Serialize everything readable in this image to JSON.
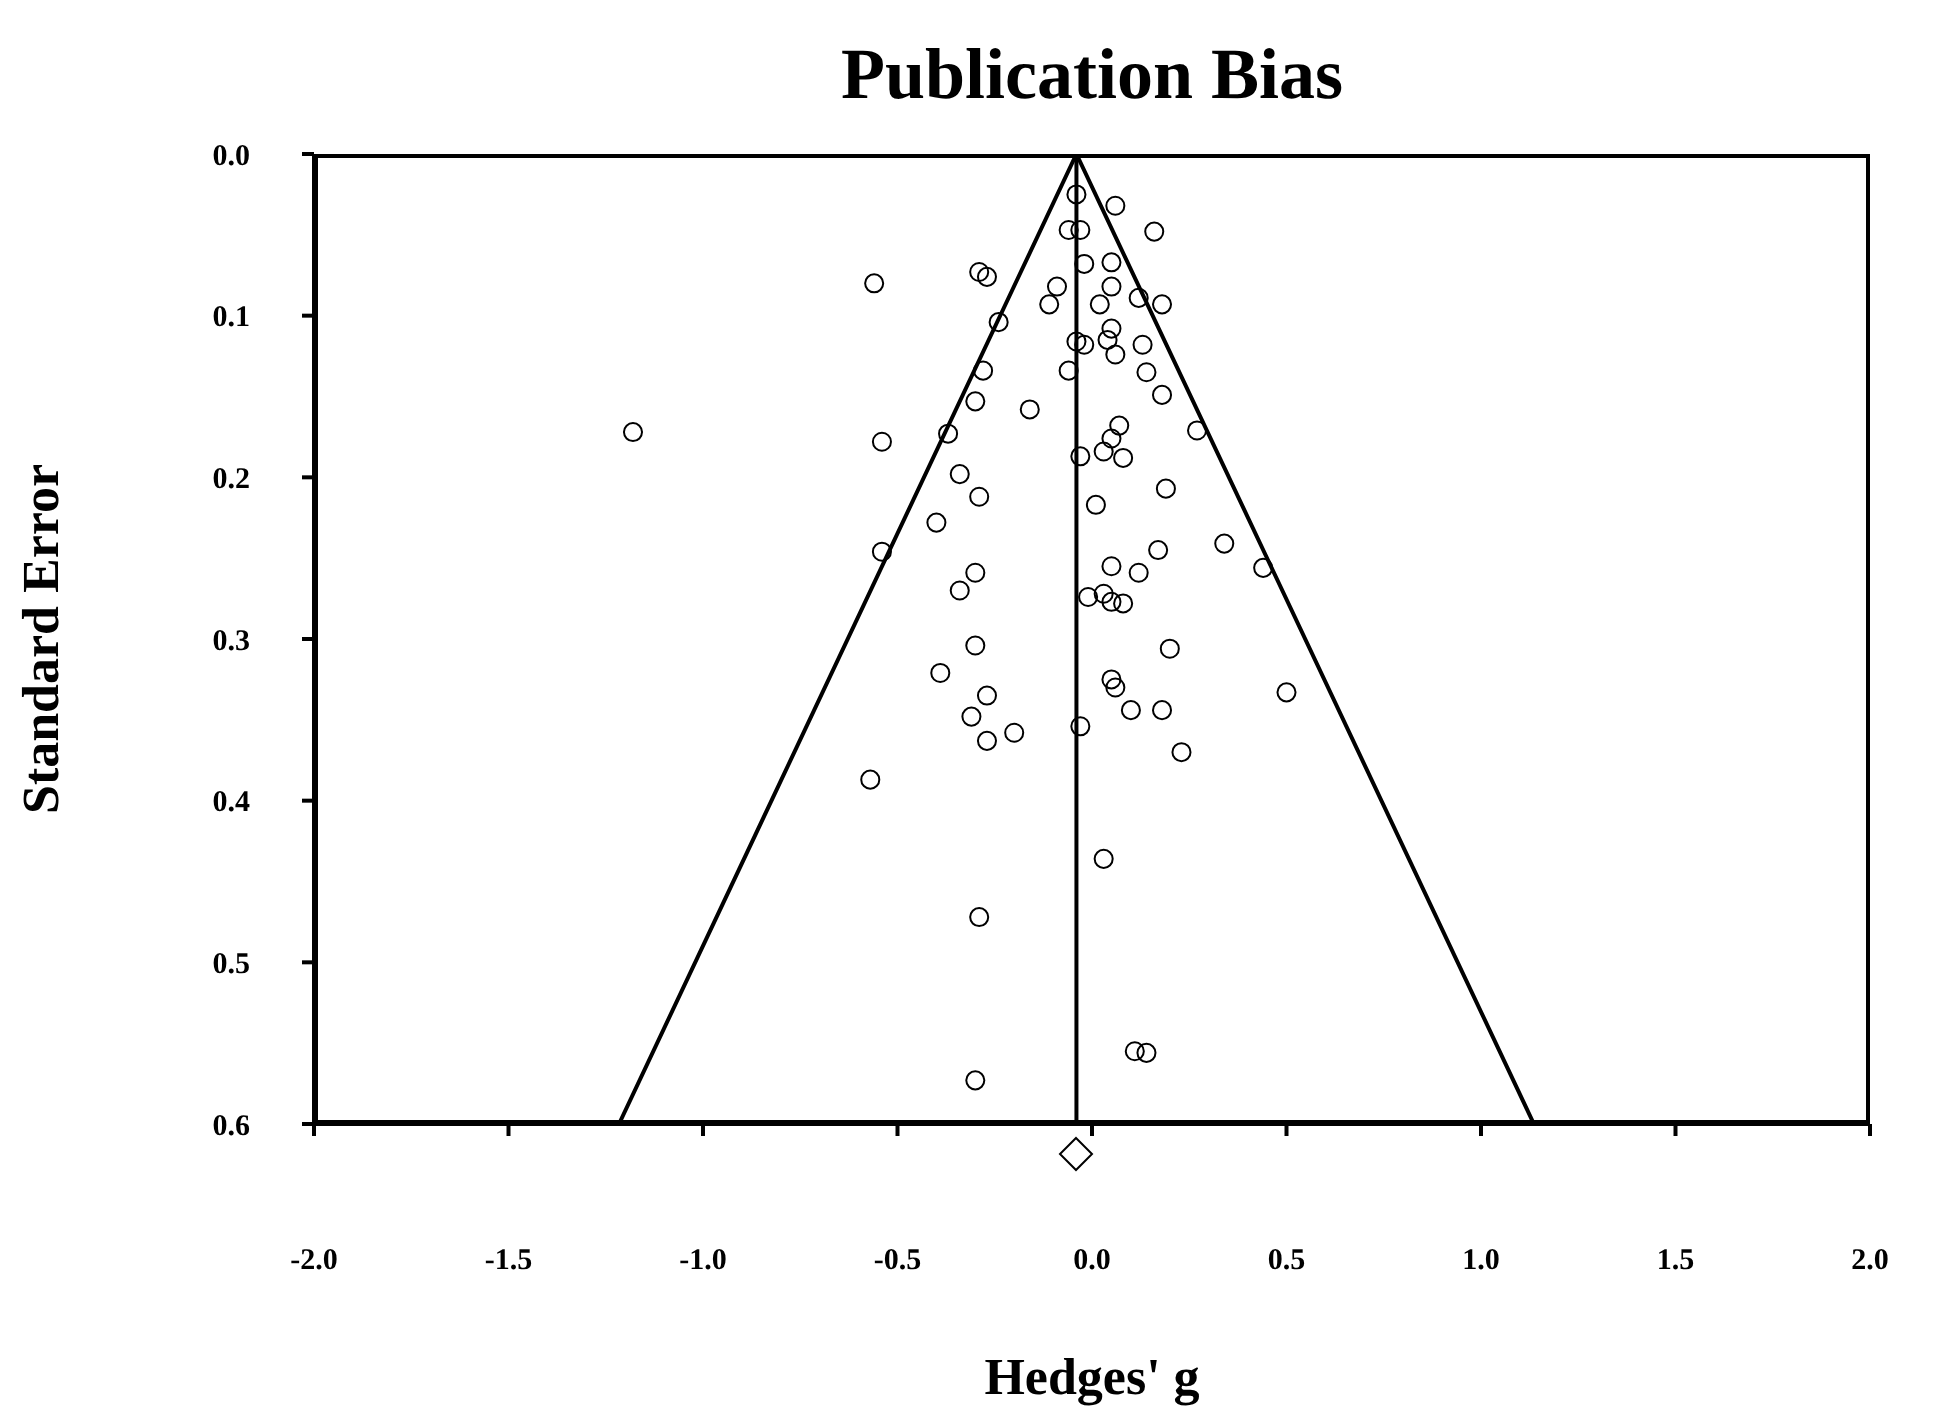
{
  "chart_data": {
    "type": "scatter",
    "title": "Publication Bias",
    "xlabel": "Hedges' g",
    "ylabel": "Standard Error",
    "xlim": [
      -2,
      2
    ],
    "ylim": [
      0.6,
      0
    ],
    "xticks": [
      {
        "value": -2,
        "label": "-2.0"
      },
      {
        "value": -1.5,
        "label": "-1.5"
      },
      {
        "value": -1,
        "label": "-1.0"
      },
      {
        "value": -0.5,
        "label": "-0.5"
      },
      {
        "value": 0,
        "label": "0.0"
      },
      {
        "value": 0.5,
        "label": "0.5"
      },
      {
        "value": 1,
        "label": "1.0"
      },
      {
        "value": 1.5,
        "label": "1.5"
      },
      {
        "value": 2,
        "label": "2.0"
      }
    ],
    "yticks": [
      {
        "value": 0,
        "label": "0.0"
      },
      {
        "value": 0.1,
        "label": "0.1"
      },
      {
        "value": 0.2,
        "label": "0.2"
      },
      {
        "value": 0.3,
        "label": "0.3"
      },
      {
        "value": 0.4,
        "label": "0.4"
      },
      {
        "value": 0.5,
        "label": "0.5"
      },
      {
        "value": 0.6,
        "label": "0.6"
      }
    ],
    "grid": false,
    "legend": false,
    "marker": "circle",
    "ref_lines": [
      {
        "axis": "x",
        "value": -0.04,
        "color": "#000000"
      }
    ],
    "series": [
      {
        "color": "#000000",
        "x": [
          -0.04,
          0.06,
          0.16,
          -0.06,
          -0.03,
          -0.56,
          0.05,
          -0.02,
          -0.29,
          -0.27,
          -0.09,
          0.05,
          0.12,
          0.18,
          -0.11,
          0.02,
          -0.24,
          0.05,
          0.04,
          -0.04,
          -0.02,
          0.13,
          0.06,
          -0.06,
          -0.28,
          0.14,
          0.18,
          -0.3,
          -0.16,
          -1.18,
          0.27,
          0.07,
          -0.37,
          -0.54,
          0.05,
          0.03,
          -0.03,
          0.08,
          -0.34,
          0.19,
          -0.29,
          0.01,
          -0.4,
          -0.54,
          0.34,
          0.17,
          0.44,
          0.05,
          0.12,
          -0.3,
          -0.34,
          -0.01,
          0.05,
          0.08,
          0.03,
          0.2,
          -0.3,
          -0.39,
          0.05,
          0.06,
          0.5,
          -0.27,
          0.1,
          0.18,
          -0.31,
          -0.03,
          -0.2,
          -0.27,
          0.23,
          -0.57,
          0.03,
          -0.29,
          0.11,
          0.14,
          -0.3
        ],
        "values": [
          0.025,
          0.032,
          0.048,
          0.047,
          0.047,
          0.08,
          0.067,
          0.068,
          0.073,
          0.076,
          0.082,
          0.082,
          0.089,
          0.093,
          0.093,
          0.093,
          0.104,
          0.108,
          0.115,
          0.116,
          0.118,
          0.118,
          0.124,
          0.134,
          0.134,
          0.135,
          0.149,
          0.153,
          0.158,
          0.172,
          0.171,
          0.168,
          0.173,
          0.178,
          0.176,
          0.184,
          0.187,
          0.188,
          0.198,
          0.207,
          0.212,
          0.217,
          0.228,
          0.246,
          0.241,
          0.245,
          0.256,
          0.255,
          0.259,
          0.259,
          0.27,
          0.274,
          0.277,
          0.278,
          0.272,
          0.306,
          0.304,
          0.321,
          0.325,
          0.33,
          0.333,
          0.335,
          0.344,
          0.344,
          0.348,
          0.354,
          0.358,
          0.363,
          0.37,
          0.387,
          0.436,
          0.472,
          0.555,
          0.556,
          0.573
        ]
      },
      {
        "type": "line",
        "color": "#000000",
        "marker": "none",
        "x": [
          -1.216,
          -0.04,
          1.136
        ],
        "values": [
          0.6,
          0,
          0.6
        ]
      }
    ]
  }
}
